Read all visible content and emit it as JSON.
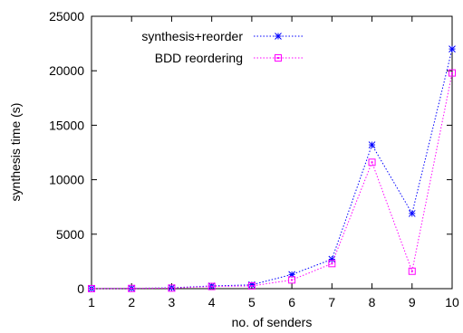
{
  "chart_data": {
    "type": "line",
    "xlabel": "no. of senders",
    "ylabel": "synthesis time (s)",
    "x": [
      1,
      2,
      3,
      4,
      5,
      6,
      7,
      8,
      9,
      10
    ],
    "xlim": [
      1,
      10
    ],
    "ylim": [
      0,
      25000
    ],
    "xticks": [
      "1",
      "2",
      "3",
      "4",
      "5",
      "6",
      "7",
      "8",
      "9",
      "10"
    ],
    "yticks": [
      "0",
      "5000",
      "10000",
      "15000",
      "20000",
      "25000"
    ],
    "grid": false,
    "legend_position": "top-left",
    "series": [
      {
        "name": "synthesis+reorder",
        "color": "#0000ff",
        "marker": "asterisk",
        "line_style": "dotted",
        "values": [
          10,
          30,
          80,
          250,
          350,
          1300,
          2700,
          13200,
          6900,
          22000
        ]
      },
      {
        "name": "BDD reordering",
        "color": "#ff00ff",
        "marker": "square",
        "line_style": "dotted",
        "values": [
          5,
          20,
          50,
          200,
          250,
          800,
          2300,
          11600,
          1600,
          19800
        ]
      }
    ]
  }
}
